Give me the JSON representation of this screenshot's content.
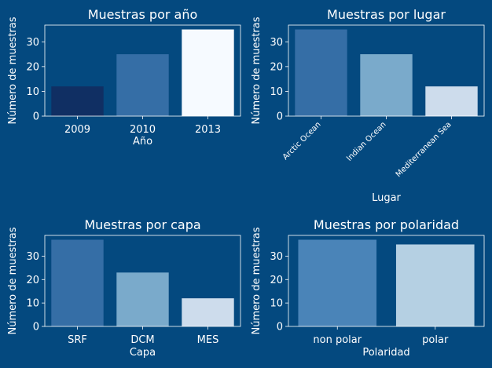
{
  "chart_data": [
    {
      "type": "bar",
      "title": "Muestras por año",
      "xlabel": "Año",
      "ylabel": "Número de muestras",
      "categories": [
        "2009",
        "2010",
        "2013"
      ],
      "values": [
        12,
        25,
        35
      ],
      "colors": [
        "#102f63",
        "#356ea6",
        "#f6faff"
      ],
      "ylim": [
        0,
        36.75
      ],
      "yticks": [
        0,
        10,
        20,
        30
      ],
      "xtick_rotation": 0
    },
    {
      "type": "bar",
      "title": "Muestras por lugar",
      "xlabel": "Lugar",
      "ylabel": "Número de muestras",
      "categories": [
        "Arctic Ocean",
        "Indian Ocean",
        "Mediterranean Sea"
      ],
      "values": [
        35,
        25,
        12
      ],
      "colors": [
        "#356ea6",
        "#7aaacb",
        "#cddcec"
      ],
      "ylim": [
        0,
        36.75
      ],
      "yticks": [
        0,
        10,
        20,
        30
      ],
      "xtick_rotation": 45
    },
    {
      "type": "bar",
      "title": "Muestras por capa",
      "xlabel": "Capa",
      "ylabel": "Número de muestras",
      "categories": [
        "SRF",
        "DCM",
        "MES"
      ],
      "values": [
        37,
        23,
        12
      ],
      "colors": [
        "#356ea6",
        "#7aaacb",
        "#cddcec"
      ],
      "ylim": [
        0,
        38.85
      ],
      "yticks": [
        0,
        10,
        20,
        30
      ],
      "xtick_rotation": 0
    },
    {
      "type": "bar",
      "title": "Muestras por polaridad",
      "xlabel": "Polaridad",
      "ylabel": "Número de muestras",
      "categories": [
        "non polar",
        "polar"
      ],
      "values": [
        37,
        35
      ],
      "colors": [
        "#4a84b8",
        "#b5d0e3"
      ],
      "ylim": [
        0,
        38.85
      ],
      "yticks": [
        0,
        10,
        20,
        30
      ],
      "xtick_rotation": 0
    }
  ]
}
